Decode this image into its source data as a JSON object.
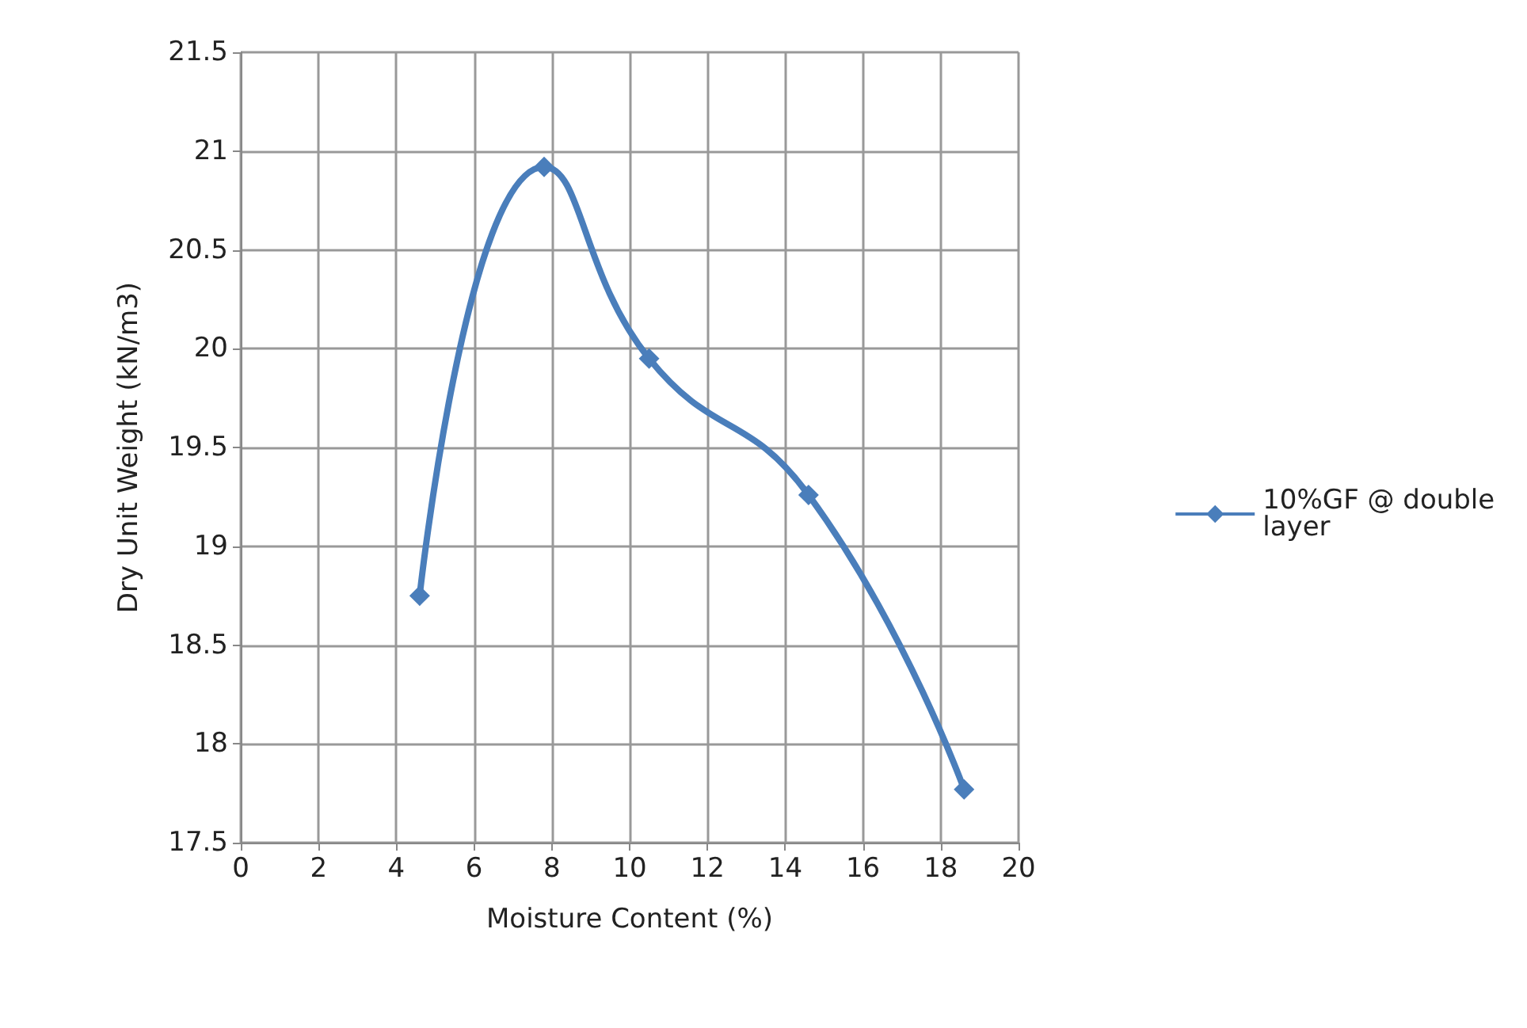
{
  "chart_data": {
    "type": "line",
    "xlabel": "Moisture Content (%)",
    "ylabel": "Dry Unit Weight (kN/m3)",
    "x": [
      4.6,
      7.8,
      10.5,
      14.6,
      18.6
    ],
    "series": [
      {
        "name": "10%GF @ double layer",
        "color": "#4a7ebb",
        "values": [
          18.75,
          20.92,
          19.95,
          19.26,
          17.77
        ]
      }
    ],
    "xlim": [
      0,
      20
    ],
    "xticks": [
      0,
      2,
      4,
      6,
      8,
      10,
      12,
      14,
      16,
      18,
      20
    ],
    "ylim": [
      17.5,
      21.5
    ],
    "yticks": [
      17.5,
      18,
      18.5,
      19,
      19.5,
      20,
      20.5,
      21,
      21.5
    ],
    "grid": true,
    "legend": "right",
    "marker": "diamond",
    "line_style": "solid"
  }
}
